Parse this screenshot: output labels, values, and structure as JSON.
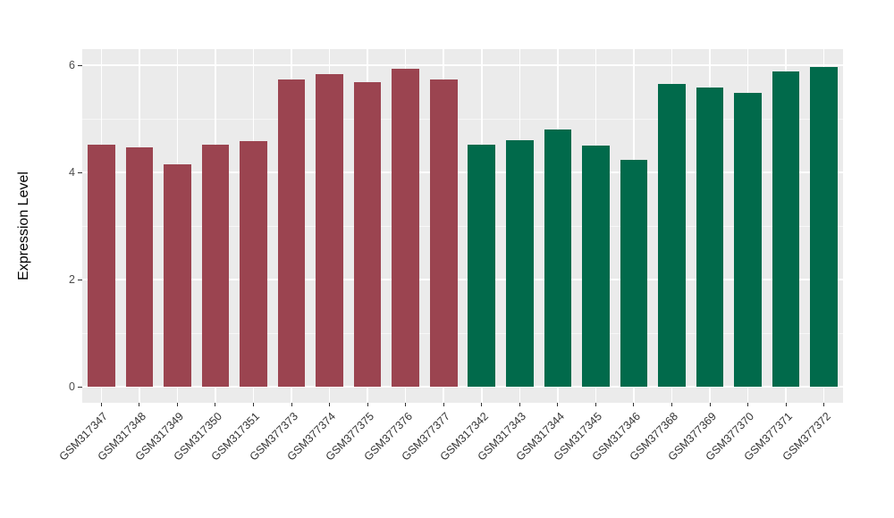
{
  "figure": {
    "background": "#FFFFFF",
    "panel_background": "#EBEBEB",
    "grid_color": "#FFFFFF",
    "tick_color": "#333333",
    "axis_text_color": "#4D4D4D"
  },
  "chart_data": {
    "type": "bar",
    "title": "",
    "xlabel": "",
    "ylabel": "Expression Level",
    "y_ticks": [
      0,
      2,
      4,
      6
    ],
    "y_tick_labels": [
      "0",
      "2",
      "4",
      "6"
    ],
    "y_minor_ticks": [
      1,
      3,
      5
    ],
    "ylim": [
      0,
      6.3
    ],
    "grid": true,
    "legend": false,
    "group_colors": {
      "maroon": "#9B4450",
      "green": "#016A4B"
    },
    "bars": [
      {
        "label": "GSM317347",
        "value": 4.52,
        "group": "maroon"
      },
      {
        "label": "GSM317348",
        "value": 4.47,
        "group": "maroon"
      },
      {
        "label": "GSM317349",
        "value": 4.16,
        "group": "maroon"
      },
      {
        "label": "GSM317350",
        "value": 4.52,
        "group": "maroon"
      },
      {
        "label": "GSM317351",
        "value": 4.58,
        "group": "maroon"
      },
      {
        "label": "GSM377373",
        "value": 5.74,
        "group": "maroon"
      },
      {
        "label": "GSM377374",
        "value": 5.84,
        "group": "maroon"
      },
      {
        "label": "GSM377375",
        "value": 5.69,
        "group": "maroon"
      },
      {
        "label": "GSM377376",
        "value": 5.94,
        "group": "maroon"
      },
      {
        "label": "GSM377377",
        "value": 5.73,
        "group": "maroon"
      },
      {
        "label": "GSM317342",
        "value": 4.52,
        "group": "green"
      },
      {
        "label": "GSM317343",
        "value": 4.61,
        "group": "green"
      },
      {
        "label": "GSM317344",
        "value": 4.81,
        "group": "green"
      },
      {
        "label": "GSM317345",
        "value": 4.51,
        "group": "green"
      },
      {
        "label": "GSM317346",
        "value": 4.24,
        "group": "green"
      },
      {
        "label": "GSM377368",
        "value": 5.66,
        "group": "green"
      },
      {
        "label": "GSM377369",
        "value": 5.58,
        "group": "green"
      },
      {
        "label": "GSM377370",
        "value": 5.48,
        "group": "green"
      },
      {
        "label": "GSM377371",
        "value": 5.89,
        "group": "green"
      },
      {
        "label": "GSM377372",
        "value": 5.97,
        "group": "green"
      }
    ]
  }
}
